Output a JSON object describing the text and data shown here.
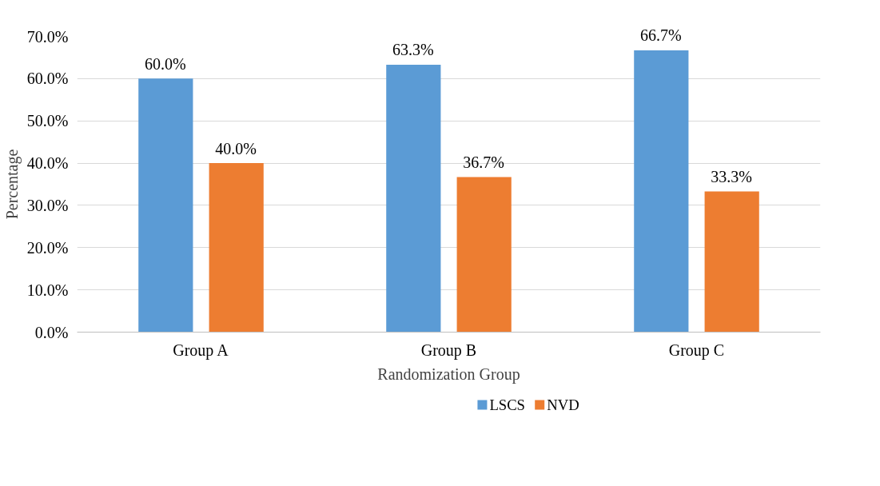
{
  "chart_data": {
    "type": "bar",
    "xlabel": "Randomization Group",
    "ylabel": "Percentage",
    "categories": [
      "Group A",
      "Group B",
      "Group C"
    ],
    "series": [
      {
        "name": "LSCS",
        "color": "#5b9bd5",
        "values": [
          60.0,
          63.3,
          66.7
        ],
        "value_labels": [
          "60.0%",
          "63.3%",
          "66.7%"
        ]
      },
      {
        "name": "NVD",
        "color": "#ed7d31",
        "values": [
          40.0,
          36.7,
          33.3
        ],
        "value_labels": [
          "40.0%",
          "36.7%",
          "33.3%"
        ]
      }
    ],
    "ylim": [
      0,
      70
    ],
    "yticks": [
      {
        "value": 0,
        "label": "0.0%"
      },
      {
        "value": 10,
        "label": "10.0%"
      },
      {
        "value": 20,
        "label": "20.0%"
      },
      {
        "value": 30,
        "label": "30.0%"
      },
      {
        "value": 40,
        "label": "40.0%"
      },
      {
        "value": 50,
        "label": "50.0%"
      },
      {
        "value": 60,
        "label": "60.0%"
      },
      {
        "value": 70,
        "label": "70.0%"
      }
    ],
    "grid": "y",
    "legend": "bottom"
  }
}
